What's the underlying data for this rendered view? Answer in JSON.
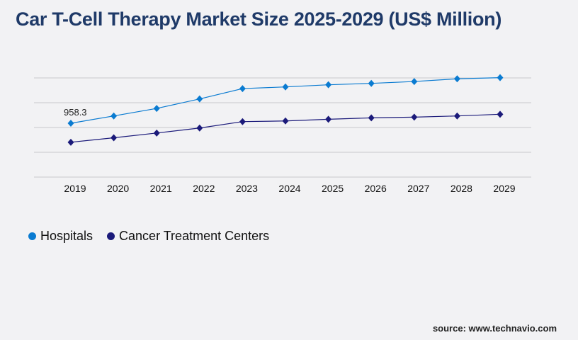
{
  "chart_data": {
    "type": "line",
    "title": "Car T-Cell Therapy Market Size 2025-2029 (US$ Million)",
    "categories": [
      "2019",
      "2020",
      "2021",
      "2022",
      "2023",
      "2024",
      "2025",
      "2026",
      "2027",
      "2028",
      "2029"
    ],
    "series": [
      {
        "name": "Hospitals",
        "color": "#0a7bd1",
        "values": [
          958.3,
          1088,
          1222,
          1391,
          1575,
          1605,
          1643,
          1668,
          1701,
          1749,
          1770
        ]
      },
      {
        "name": "Cancer Treatment Centers",
        "color": "#1b1a7a",
        "values": [
          620,
          700,
          784,
          873,
          987,
          999,
          1029,
          1054,
          1067,
          1088,
          1118
        ]
      }
    ],
    "data_labels": [
      {
        "series": 0,
        "index": 0,
        "text": "958.3"
      }
    ],
    "ylim": [
      0,
      1765
    ],
    "grid": true,
    "legend": "bottom-left",
    "source": "source: www.technavio.com"
  }
}
